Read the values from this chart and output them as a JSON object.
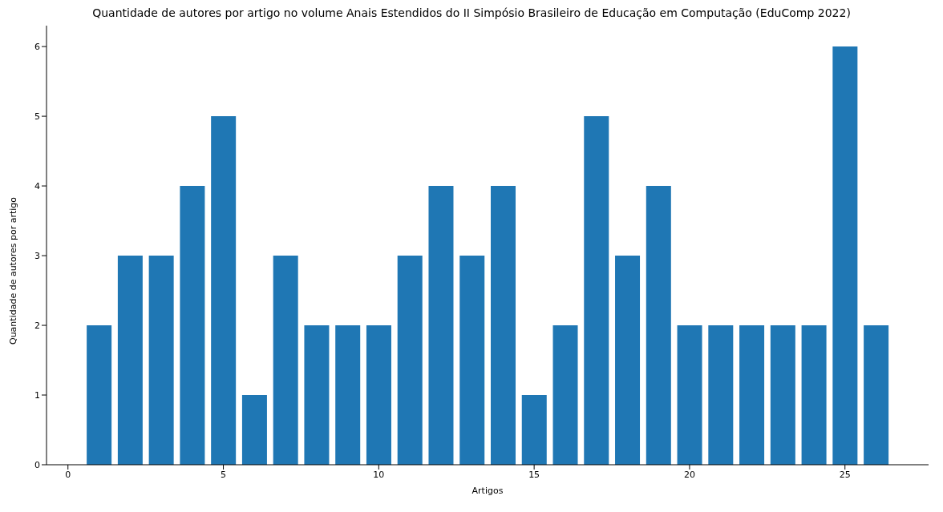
{
  "chart_data": {
    "type": "bar",
    "title": "Quantidade de autores por artigo no volume Anais Estendidos do II Simpósio Brasileiro de Educação em Computação (EduComp 2022)",
    "xlabel": "Artigos",
    "ylabel": "Quantidade de autores por artigo",
    "x": [
      1,
      2,
      3,
      4,
      5,
      6,
      7,
      8,
      9,
      10,
      11,
      12,
      13,
      14,
      15,
      16,
      17,
      18,
      19,
      20,
      21,
      22,
      23,
      24,
      25,
      26
    ],
    "values": [
      2,
      3,
      3,
      4,
      5,
      1,
      3,
      2,
      2,
      2,
      3,
      4,
      3,
      4,
      1,
      2,
      5,
      3,
      4,
      2,
      2,
      2,
      2,
      2,
      6,
      2
    ],
    "color": "#1f77b4",
    "xlim": [
      -0.69,
      27.69
    ],
    "xticks": [
      0,
      5,
      10,
      15,
      20,
      25
    ],
    "ylim": [
      0,
      6.3
    ],
    "yticks": [
      0,
      1,
      2,
      3,
      4,
      5,
      6
    ],
    "grid": false
  }
}
